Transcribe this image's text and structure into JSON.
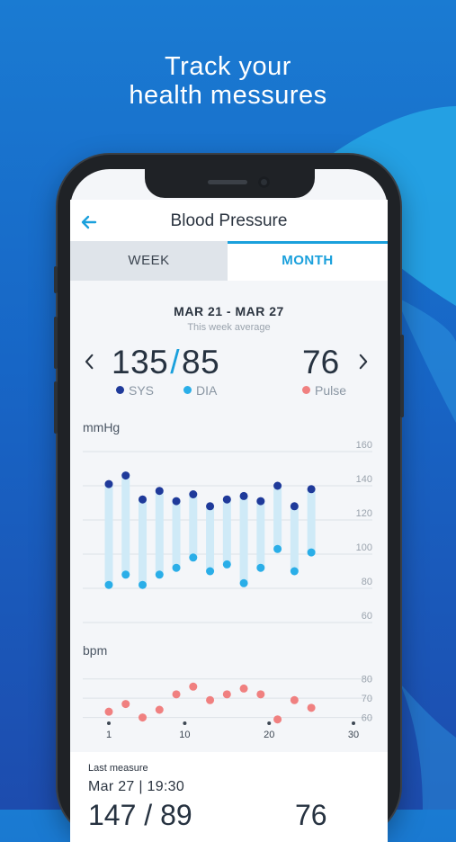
{
  "promo": {
    "line1": "Track your",
    "line2": "health messures"
  },
  "header": {
    "title": "Blood Pressure",
    "back_icon": "arrow-left-icon"
  },
  "tabs": [
    {
      "label": "WEEK",
      "active": false
    },
    {
      "label": "MONTH",
      "active": true
    }
  ],
  "summary": {
    "date_range": "MAR 21 - MAR 27",
    "subtitle": "This week average",
    "sys": "135",
    "slash": "/",
    "dia": "85",
    "pulse": "76",
    "sys_label": "SYS",
    "dia_label": "DIA",
    "pulse_label": "Pulse",
    "prev_icon": "chevron-left-icon",
    "next_icon": "chevron-right-icon"
  },
  "colors": {
    "sys": "#1f3a9a",
    "dia": "#2aaee8",
    "pulse": "#f08080",
    "range_bar": "#cfeaf7",
    "accent": "#1aa0dc"
  },
  "chart_data": [
    {
      "type": "scatter",
      "ylabel": "mmHg",
      "ylim": [
        60,
        160
      ],
      "yticks": [
        "160",
        "140",
        "120",
        "100",
        "80",
        "60"
      ],
      "grid": true,
      "x": [
        1,
        3,
        5,
        7,
        9,
        11,
        13,
        15,
        17,
        19,
        21,
        23,
        25
      ],
      "series": [
        {
          "name": "SYS",
          "values": [
            141,
            146,
            132,
            137,
            131,
            135,
            128,
            132,
            134,
            131,
            140,
            128,
            138
          ]
        },
        {
          "name": "DIA",
          "values": [
            82,
            88,
            82,
            88,
            92,
            98,
            90,
            94,
            83,
            92,
            103,
            90,
            101
          ]
        }
      ]
    },
    {
      "type": "scatter",
      "ylabel": "bpm",
      "ylim": [
        57,
        85
      ],
      "yticks": [
        "80",
        "70",
        "60"
      ],
      "grid": true,
      "x": [
        1,
        3,
        5,
        7,
        9,
        11,
        13,
        15,
        17,
        19,
        21,
        23,
        25
      ],
      "xticks": [
        "1",
        "10",
        "20",
        "30"
      ],
      "series": [
        {
          "name": "Pulse",
          "values": [
            63,
            67,
            60,
            64,
            72,
            76,
            69,
            72,
            75,
            72,
            59,
            69,
            65
          ]
        }
      ]
    }
  ],
  "last_measure": {
    "label": "Last measure",
    "date": "Mar 27 | 19:30",
    "values": "147 / 89",
    "pulse": "76"
  }
}
